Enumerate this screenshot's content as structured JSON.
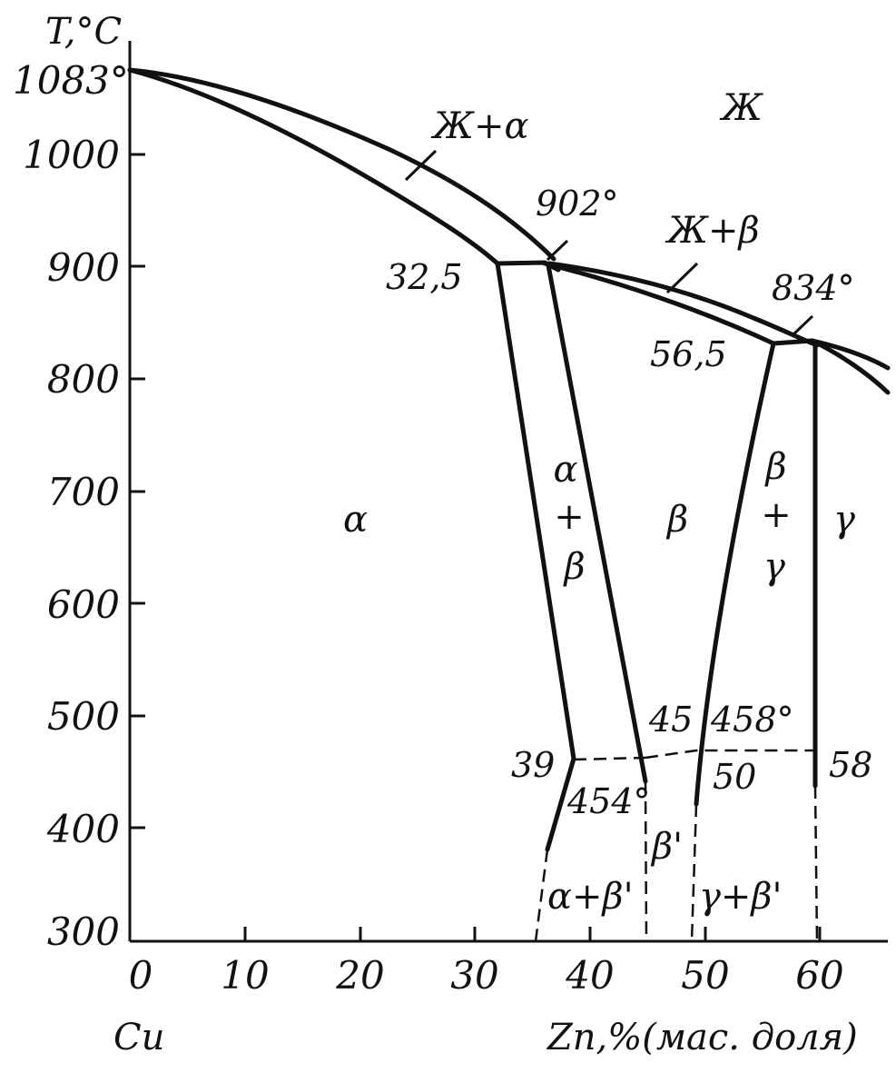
{
  "diagram": {
    "y_axis": {
      "title": "T,°C",
      "top_label": "1083°",
      "ticks": [
        "1000",
        "900",
        "800",
        "700",
        "600",
        "500",
        "400",
        "300"
      ],
      "range": [
        300,
        1090
      ]
    },
    "x_axis": {
      "ticks": [
        "0",
        "10",
        "20",
        "30",
        "40",
        "50",
        "60"
      ],
      "range": [
        0,
        67
      ],
      "left_label": "Cu",
      "right_label": "Zn,%(мас. доля)"
    },
    "regions": {
      "liquid": "Ж",
      "liquid_alpha": "Ж+α",
      "liquid_beta": "Ж+β",
      "alpha": "α",
      "alpha_beta": [
        "α",
        "+",
        "β"
      ],
      "beta": "β",
      "beta_gamma": [
        "β",
        "+",
        "γ"
      ],
      "gamma": "γ",
      "alpha_beta_prime": "α+β'",
      "beta_prime": "β'",
      "gamma_beta_prime": "γ+β'"
    },
    "points": {
      "peritectic_1_temp": "902°",
      "peritectic_1_comp": "32,5",
      "peritectic_2_temp": "834°",
      "peritectic_2_comp": "56,5",
      "ordering_left_temp": "454°",
      "ordering_right_temp": "458°",
      "comp_39": "39",
      "comp_45": "45",
      "comp_50": "50",
      "comp_58": "58"
    },
    "line_color": "#111111"
  }
}
